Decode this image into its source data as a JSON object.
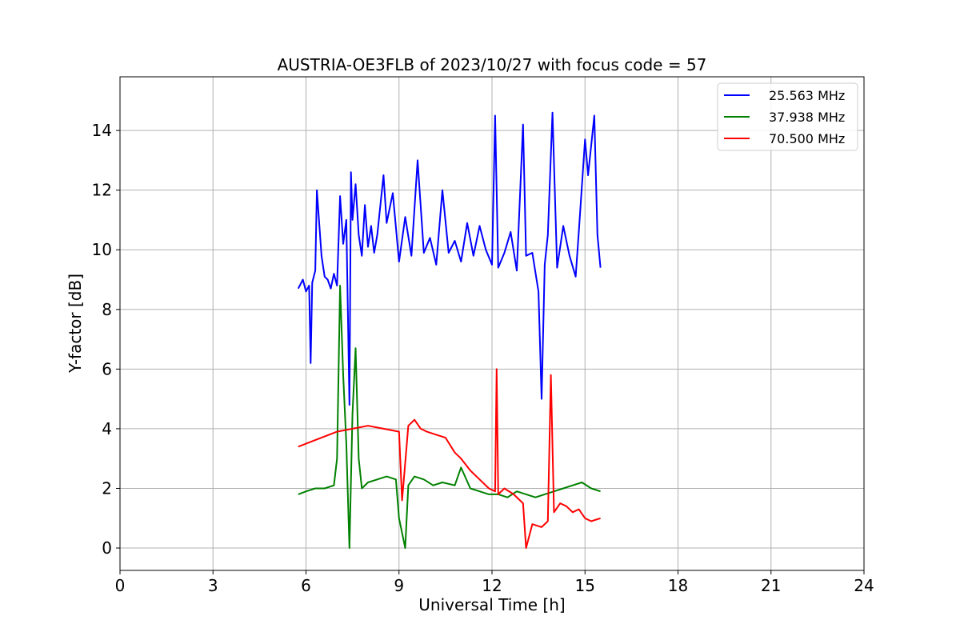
{
  "chart_data": {
    "type": "line",
    "title": "AUSTRIA-OE3FLB of 2023/10/27 with focus code = 57",
    "xlabel": "Universal Time [h]",
    "ylabel": "Y-factor [dB]",
    "xlim": [
      0,
      24
    ],
    "ylim": [
      -0.75,
      15.8
    ],
    "xticks": [
      0,
      3,
      6,
      9,
      12,
      15,
      18,
      21,
      24
    ],
    "yticks": [
      0,
      2,
      4,
      6,
      8,
      10,
      12,
      14
    ],
    "grid": true,
    "legend_position": "top-right",
    "series": [
      {
        "name": "25.563 MHz",
        "color": "#0000ff",
        "x": [
          5.75,
          5.9,
          6.0,
          6.1,
          6.15,
          6.2,
          6.3,
          6.35,
          6.5,
          6.6,
          6.7,
          6.8,
          6.9,
          7.0,
          7.1,
          7.2,
          7.3,
          7.4,
          7.45,
          7.5,
          7.6,
          7.7,
          7.8,
          7.9,
          8.0,
          8.1,
          8.2,
          8.3,
          8.5,
          8.6,
          8.8,
          9.0,
          9.2,
          9.4,
          9.6,
          9.8,
          10.0,
          10.2,
          10.4,
          10.6,
          10.8,
          11.0,
          11.2,
          11.4,
          11.6,
          11.8,
          12.0,
          12.1,
          12.2,
          12.4,
          12.6,
          12.8,
          13.0,
          13.1,
          13.3,
          13.5,
          13.6,
          13.7,
          13.8,
          13.95,
          14.1,
          14.3,
          14.5,
          14.7,
          14.8,
          15.0,
          15.1,
          15.3,
          15.4,
          15.5
        ],
        "y": [
          8.7,
          9.0,
          8.6,
          8.8,
          6.2,
          8.9,
          9.3,
          12.0,
          9.8,
          9.1,
          9.0,
          8.7,
          9.2,
          8.8,
          11.8,
          10.2,
          11.0,
          4.8,
          12.6,
          11.0,
          12.2,
          10.5,
          9.8,
          11.5,
          10.1,
          10.8,
          9.9,
          10.5,
          12.5,
          10.9,
          11.9,
          9.6,
          11.1,
          9.8,
          13.0,
          9.9,
          10.4,
          9.5,
          12.0,
          9.9,
          10.3,
          9.6,
          10.9,
          9.8,
          10.8,
          10.0,
          9.5,
          14.5,
          9.4,
          9.9,
          10.6,
          9.3,
          14.2,
          9.8,
          9.9,
          8.6,
          5.0,
          9.5,
          10.5,
          14.6,
          9.4,
          10.8,
          9.8,
          9.1,
          10.6,
          13.7,
          12.5,
          14.5,
          10.5,
          9.4
        ]
      },
      {
        "name": "37.938 MHz",
        "color": "#008000",
        "x": [
          5.75,
          6.0,
          6.3,
          6.6,
          6.9,
          7.0,
          7.1,
          7.2,
          7.3,
          7.4,
          7.5,
          7.6,
          7.7,
          7.8,
          8.0,
          8.3,
          8.6,
          8.9,
          9.0,
          9.2,
          9.3,
          9.5,
          9.8,
          10.1,
          10.4,
          10.8,
          11.0,
          11.3,
          11.6,
          11.9,
          12.2,
          12.5,
          12.8,
          13.1,
          13.4,
          13.7,
          14.0,
          14.3,
          14.6,
          14.9,
          15.2,
          15.5
        ],
        "y": [
          1.8,
          1.9,
          2.0,
          2.0,
          2.1,
          3.0,
          8.8,
          5.8,
          3.5,
          0.0,
          4.5,
          6.7,
          3.0,
          2.0,
          2.2,
          2.3,
          2.4,
          2.3,
          1.0,
          0.0,
          2.1,
          2.4,
          2.3,
          2.1,
          2.2,
          2.1,
          2.7,
          2.0,
          1.9,
          1.8,
          1.8,
          1.7,
          1.9,
          1.8,
          1.7,
          1.8,
          1.9,
          2.0,
          2.1,
          2.2,
          2.0,
          1.9
        ]
      },
      {
        "name": "70.500 MHz",
        "color": "#ff0000",
        "x": [
          5.75,
          6.0,
          6.5,
          7.0,
          7.5,
          8.0,
          8.5,
          9.0,
          9.1,
          9.3,
          9.5,
          9.7,
          9.9,
          10.2,
          10.5,
          10.8,
          11.0,
          11.3,
          11.6,
          11.9,
          12.1,
          12.15,
          12.2,
          12.4,
          12.7,
          13.0,
          13.1,
          13.3,
          13.6,
          13.8,
          13.9,
          14.0,
          14.2,
          14.4,
          14.6,
          14.8,
          15.0,
          15.2,
          15.5
        ],
        "y": [
          3.4,
          3.5,
          3.7,
          3.9,
          4.0,
          4.1,
          4.0,
          3.9,
          1.6,
          4.1,
          4.3,
          4.0,
          3.9,
          3.8,
          3.7,
          3.2,
          3.0,
          2.6,
          2.3,
          2.0,
          1.9,
          6.0,
          1.8,
          2.0,
          1.8,
          1.5,
          0.0,
          0.8,
          0.7,
          0.9,
          5.8,
          1.2,
          1.5,
          1.4,
          1.2,
          1.3,
          1.0,
          0.9,
          1.0
        ]
      }
    ]
  }
}
